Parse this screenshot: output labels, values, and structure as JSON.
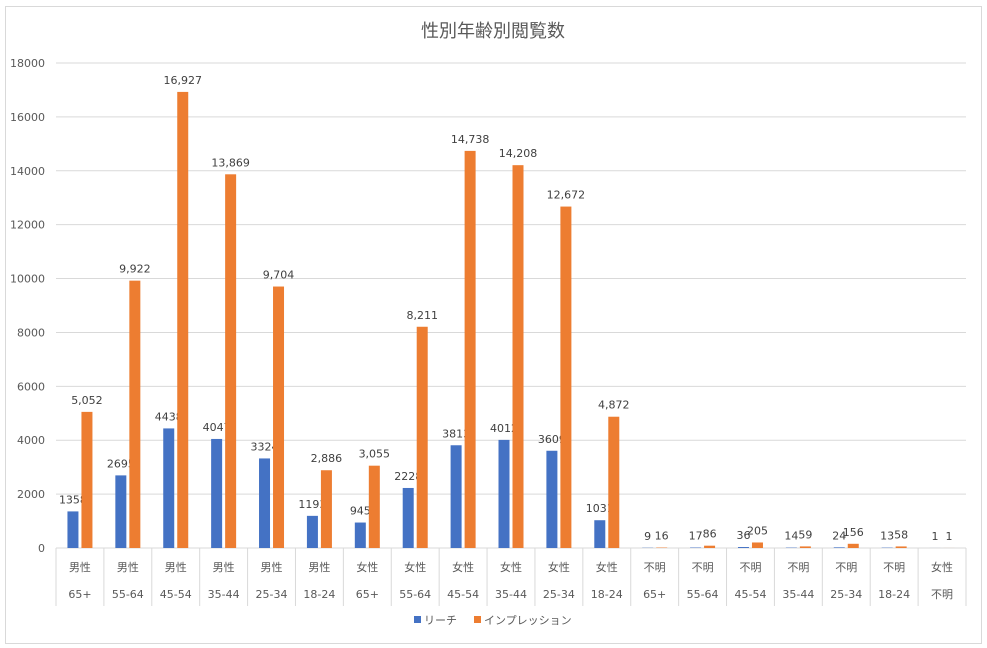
{
  "chart_data": {
    "type": "bar",
    "title": "性別年齢別閲覧数",
    "ylim": [
      0,
      18000
    ],
    "yticks": [
      0,
      2000,
      4000,
      6000,
      8000,
      10000,
      12000,
      14000,
      16000,
      18000
    ],
    "grid": true,
    "legend_position": "bottom",
    "categories": [
      {
        "gender": "男性",
        "age": "65+"
      },
      {
        "gender": "男性",
        "age": "55-64"
      },
      {
        "gender": "男性",
        "age": "45-54"
      },
      {
        "gender": "男性",
        "age": "35-44"
      },
      {
        "gender": "男性",
        "age": "25-34"
      },
      {
        "gender": "男性",
        "age": "18-24"
      },
      {
        "gender": "女性",
        "age": "65+"
      },
      {
        "gender": "女性",
        "age": "55-64"
      },
      {
        "gender": "女性",
        "age": "45-54"
      },
      {
        "gender": "女性",
        "age": "35-44"
      },
      {
        "gender": "女性",
        "age": "25-34"
      },
      {
        "gender": "女性",
        "age": "18-24"
      },
      {
        "gender": "不明",
        "age": "65+"
      },
      {
        "gender": "不明",
        "age": "55-64"
      },
      {
        "gender": "不明",
        "age": "45-54"
      },
      {
        "gender": "不明",
        "age": "35-44"
      },
      {
        "gender": "不明",
        "age": "25-34"
      },
      {
        "gender": "不明",
        "age": "18-24"
      },
      {
        "gender": "女性",
        "age": "不明"
      }
    ],
    "series": [
      {
        "name": "リーチ",
        "color": "#4472c4",
        "values": [
          1358,
          2695,
          4438,
          4047,
          3324,
          1193,
          945,
          2228,
          3813,
          4012,
          3609,
          1031,
          9,
          17,
          36,
          14,
          24,
          13,
          1
        ],
        "labels": [
          "1358",
          "2695",
          "4438",
          "4047",
          "3324",
          "1193",
          "945",
          "2228",
          "3813",
          "4012",
          "3609",
          "1031",
          "9",
          "17",
          "36",
          "14",
          "24",
          "13",
          "1"
        ]
      },
      {
        "name": "インプレッション",
        "color": "#ed7d31",
        "values": [
          5052,
          9922,
          16927,
          13869,
          9704,
          2886,
          3055,
          8211,
          14738,
          14208,
          12672,
          4872,
          16,
          86,
          205,
          59,
          156,
          58,
          1
        ],
        "labels": [
          "5,052",
          "9,922",
          "16,927",
          "13,869",
          "9,704",
          "2,886",
          "3,055",
          "8,211",
          "14,738",
          "14,208",
          "12,672",
          "4,872",
          "16",
          "86",
          "205",
          "59",
          "156",
          "58",
          "1"
        ]
      }
    ]
  }
}
